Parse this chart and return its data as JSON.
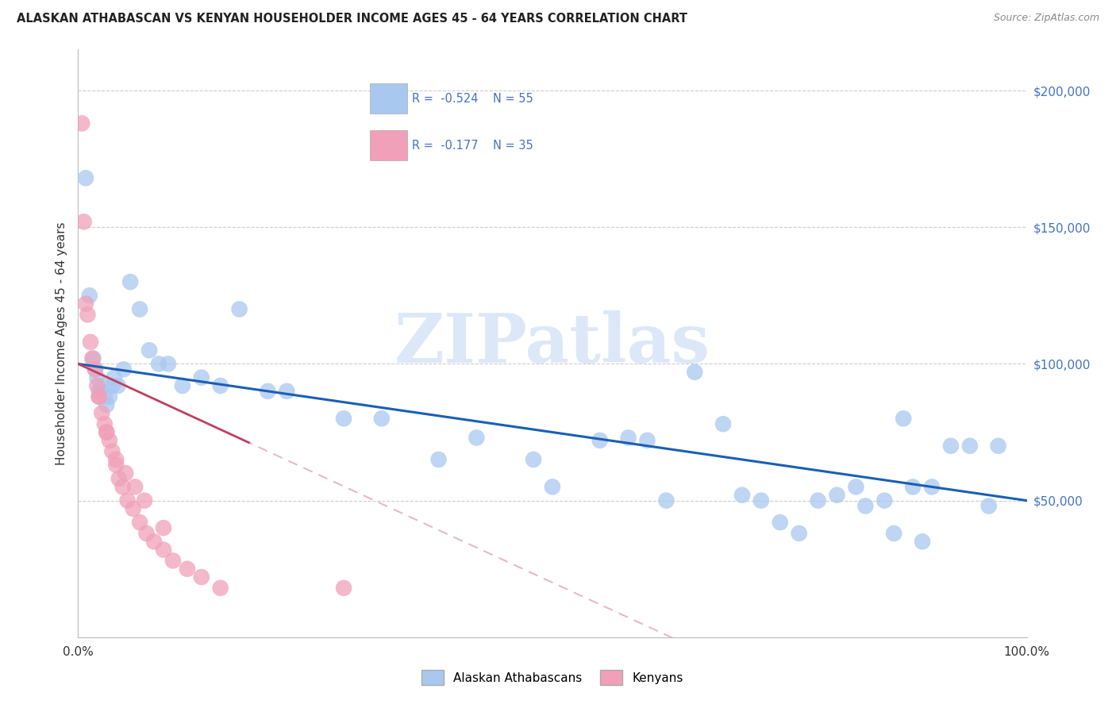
{
  "title": "ALASKAN ATHABASCAN VS KENYAN HOUSEHOLDER INCOME AGES 45 - 64 YEARS CORRELATION CHART",
  "source": "Source: ZipAtlas.com",
  "ylabel": "Householder Income Ages 45 - 64 years",
  "ytick_values": [
    50000,
    100000,
    150000,
    200000
  ],
  "ymin": 0,
  "ymax": 215000,
  "xmin": 0.0,
  "xmax": 1.0,
  "legend_label_1": "Alaskan Athabascans",
  "legend_label_2": "Kenyans",
  "R1": "-0.524",
  "N1": "55",
  "R2": "-0.177",
  "N2": "35",
  "color_blue": "#a8c8f0",
  "color_pink": "#f0a0b8",
  "color_blue_text": "#4472c4",
  "trendline_blue": "#1a5fb4",
  "trendline_pink_solid": "#c04060",
  "trendline_pink_dashed": "#e8b8c8",
  "watermark_color": "#dce8f8",
  "background": "#ffffff",
  "grid_color": "#cccccc",
  "blue_x": [
    0.008,
    0.012,
    0.016,
    0.018,
    0.02,
    0.022,
    0.025,
    0.028,
    0.03,
    0.033,
    0.036,
    0.038,
    0.042,
    0.048,
    0.055,
    0.065,
    0.075,
    0.085,
    0.095,
    0.11,
    0.13,
    0.15,
    0.17,
    0.2,
    0.22,
    0.28,
    0.32,
    0.38,
    0.42,
    0.48,
    0.55,
    0.58,
    0.62,
    0.65,
    0.72,
    0.78,
    0.8,
    0.82,
    0.85,
    0.87,
    0.88,
    0.9,
    0.92,
    0.94,
    0.96,
    0.97,
    0.5,
    0.6,
    0.68,
    0.7,
    0.74,
    0.76,
    0.83,
    0.86,
    0.89
  ],
  "blue_y": [
    168000,
    125000,
    102000,
    98000,
    95000,
    90000,
    92000,
    88000,
    85000,
    88000,
    92000,
    95000,
    92000,
    98000,
    130000,
    120000,
    105000,
    100000,
    100000,
    92000,
    95000,
    92000,
    120000,
    90000,
    90000,
    80000,
    80000,
    65000,
    73000,
    65000,
    72000,
    73000,
    50000,
    97000,
    50000,
    50000,
    52000,
    55000,
    50000,
    80000,
    55000,
    55000,
    70000,
    70000,
    48000,
    70000,
    55000,
    72000,
    78000,
    52000,
    42000,
    38000,
    48000,
    38000,
    35000
  ],
  "pink_x": [
    0.004,
    0.006,
    0.008,
    0.01,
    0.013,
    0.015,
    0.018,
    0.02,
    0.022,
    0.025,
    0.028,
    0.03,
    0.033,
    0.036,
    0.04,
    0.043,
    0.047,
    0.052,
    0.058,
    0.065,
    0.072,
    0.08,
    0.09,
    0.1,
    0.115,
    0.13,
    0.15,
    0.022,
    0.03,
    0.04,
    0.05,
    0.06,
    0.07,
    0.09,
    0.28
  ],
  "pink_y": [
    188000,
    152000,
    122000,
    118000,
    108000,
    102000,
    98000,
    92000,
    88000,
    82000,
    78000,
    75000,
    72000,
    68000,
    63000,
    58000,
    55000,
    50000,
    47000,
    42000,
    38000,
    35000,
    32000,
    28000,
    25000,
    22000,
    18000,
    88000,
    75000,
    65000,
    60000,
    55000,
    50000,
    40000,
    18000
  ]
}
